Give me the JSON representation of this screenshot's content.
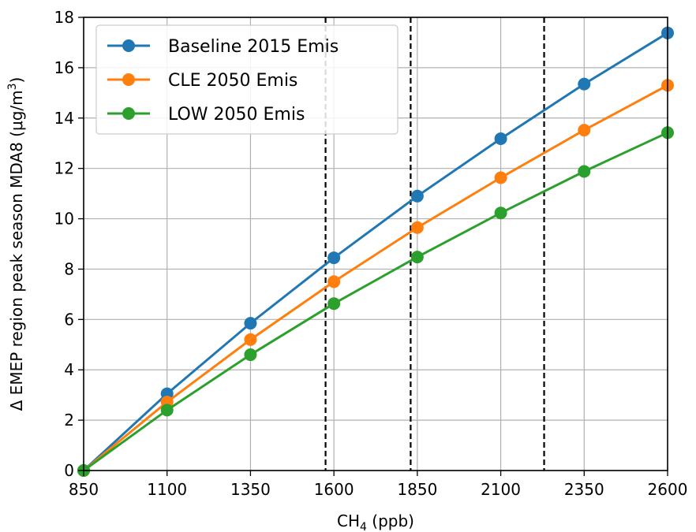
{
  "chart_data": {
    "type": "line",
    "title": "",
    "xlabel": {
      "main": "CH",
      "sub": "4",
      "rest": " (ppb)"
    },
    "ylabel": {
      "main": "Δ EMEP region peak season MDA8 (μg/m",
      "sup": "3",
      "rest": ")"
    },
    "xlim": [
      850,
      2600
    ],
    "ylim": [
      0,
      18
    ],
    "x_ticks": [
      850,
      1100,
      1350,
      1600,
      1850,
      2100,
      2350,
      2600
    ],
    "y_ticks": [
      0,
      2,
      4,
      6,
      8,
      10,
      12,
      14,
      16,
      18
    ],
    "grid": true,
    "legend_position": "top-left",
    "x": [
      850,
      1100,
      1350,
      1600,
      1850,
      2100,
      2350,
      2600
    ],
    "series": [
      {
        "name": "Baseline 2015 Emis",
        "color": "#1f77b4",
        "values": [
          0,
          3.05,
          5.85,
          8.45,
          10.9,
          13.18,
          15.35,
          17.38
        ]
      },
      {
        "name": "CLE 2050 Emis",
        "color": "#ff7f0e",
        "values": [
          0,
          2.72,
          5.2,
          7.5,
          9.65,
          11.63,
          13.52,
          15.3
        ]
      },
      {
        "name": "LOW 2050 Emis",
        "color": "#2ca02c",
        "values": [
          0,
          2.4,
          4.6,
          6.63,
          8.48,
          10.23,
          11.88,
          13.42
        ]
      }
    ],
    "vertical_dashed_lines": [
      1575,
      1830,
      2230
    ]
  }
}
